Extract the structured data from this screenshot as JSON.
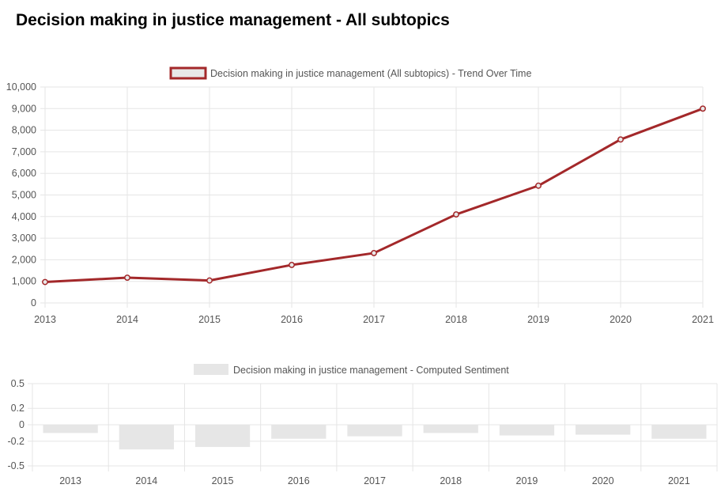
{
  "page": {
    "title": "Decision making in justice management - All subtopics"
  },
  "colors": {
    "trend_line": "#a3282a",
    "trend_legend_fill": "#e8e8e8",
    "sentiment_bar": "#e6e6e6",
    "grid": "#e5e5e5",
    "tick_text": "#555555"
  },
  "chart_data": [
    {
      "type": "line",
      "legend": "Decision making in justice management (All subtopics) - Trend Over Time",
      "legend_position": "top",
      "x": [
        "2013",
        "2014",
        "2015",
        "2016",
        "2017",
        "2018",
        "2019",
        "2020",
        "2021"
      ],
      "values": [
        970,
        1170,
        1040,
        1760,
        2310,
        4100,
        5430,
        7570,
        9000
      ],
      "ylim": [
        0,
        10000
      ],
      "yticks": [
        "0",
        "1,000",
        "2,000",
        "3,000",
        "4,000",
        "5,000",
        "6,000",
        "7,000",
        "8,000",
        "9,000",
        "10,000"
      ],
      "grid": true
    },
    {
      "type": "bar",
      "legend": "Decision making in justice management - Computed Sentiment",
      "legend_position": "top",
      "categories": [
        "2013",
        "2014",
        "2015",
        "2016",
        "2017",
        "2018",
        "2019",
        "2020",
        "2021"
      ],
      "values": [
        -0.1,
        -0.3,
        -0.27,
        -0.17,
        -0.14,
        -0.1,
        -0.13,
        -0.12,
        -0.17
      ],
      "ylim": [
        -0.5,
        0.5
      ],
      "yticks": [
        "0.5",
        "0.2",
        "0",
        "-0.2",
        "-0.5"
      ],
      "grid": true
    }
  ]
}
